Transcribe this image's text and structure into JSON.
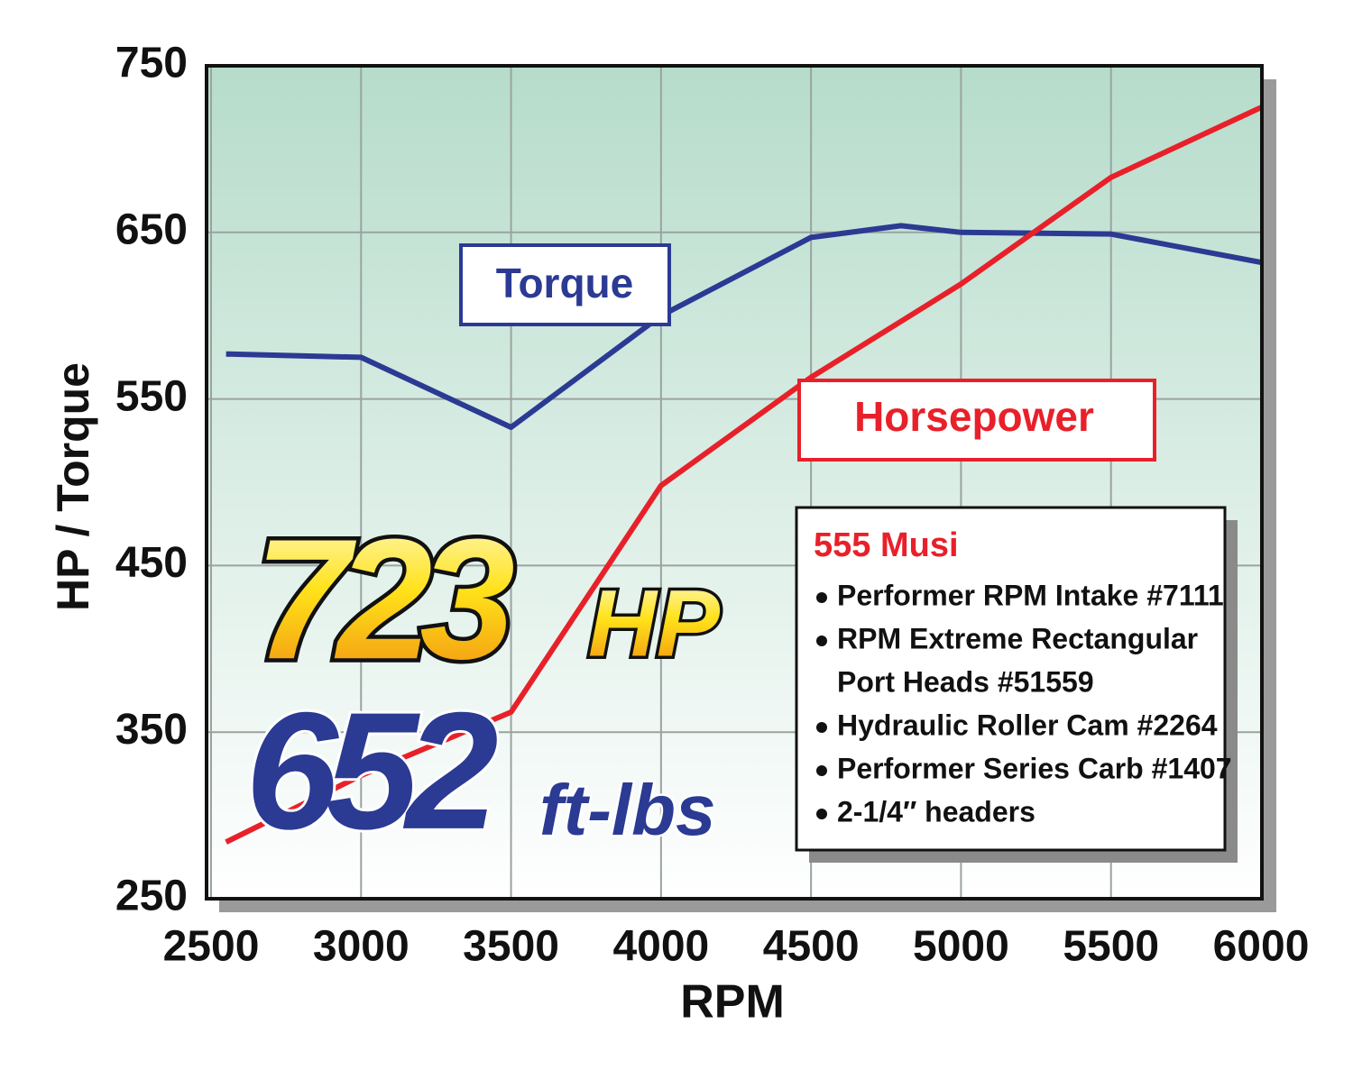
{
  "chart_data": {
    "type": "line",
    "xlabel": "RPM",
    "ylabel": "HP / Torque",
    "xlim": [
      2500,
      6000
    ],
    "xticks": [
      2500,
      3000,
      3500,
      4000,
      4500,
      5000,
      5500,
      6000
    ],
    "ylim": [
      250,
      750
    ],
    "yticks": [
      250,
      350,
      450,
      550,
      650,
      750
    ],
    "grid": true,
    "series": [
      {
        "name": "Torque",
        "color": "#2b3a93",
        "x": [
          2550,
          3000,
          3500,
          4000,
          4500,
          4800,
          5000,
          5500,
          6000
        ],
        "values": [
          577,
          575,
          533,
          600,
          647,
          654,
          650,
          649,
          632
        ]
      },
      {
        "name": "Horsepower",
        "color": "#e8202a",
        "x": [
          2550,
          3000,
          3500,
          4000,
          4500,
          5000,
          5500,
          6000
        ],
        "values": [
          284,
          324,
          362,
          498,
          563,
          619,
          683,
          725
        ]
      }
    ],
    "annotations": {
      "hp_value": "723",
      "hp_unit": "HP",
      "torque_value": "652",
      "torque_unit": "ft-lbs",
      "spec_title": "555 Musi",
      "spec_items": [
        [
          "Performer RPM Intake #7111"
        ],
        [
          "RPM Extreme Rectangular",
          "Port Heads #51559"
        ],
        [
          "Hydraulic Roller Cam #2264"
        ],
        [
          "Performer Series Carb #1407"
        ],
        [
          "2-1/4″ headers"
        ]
      ]
    }
  }
}
